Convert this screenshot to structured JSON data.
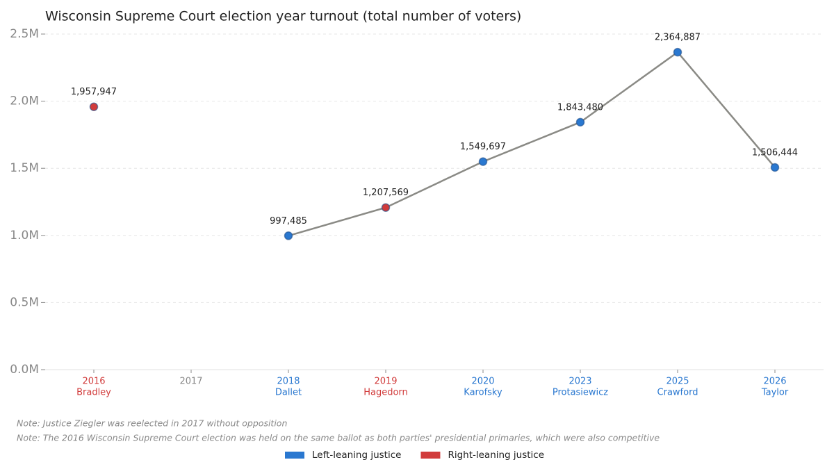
{
  "chart_data": {
    "type": "line",
    "title": "Wisconsin Supreme Court election year turnout (total number of voters)",
    "categories": [
      "2016",
      "2017",
      "2018",
      "2019",
      "2020",
      "2023",
      "2025",
      "2026"
    ],
    "subcategories": [
      "Bradley",
      null,
      "Dallet",
      "Hagedorn",
      "Karofsky",
      "Protasiewicz",
      "Crawford",
      "Taylor"
    ],
    "values": [
      1957947,
      null,
      997485,
      1207569,
      1549697,
      1843480,
      2364887,
      1506444
    ],
    "value_labels": [
      "1,957,947",
      null,
      "997,485",
      "1,207,569",
      "1,549,697",
      "1,843,480",
      "2,364,887",
      "1,506,444"
    ],
    "point_colors": [
      "#d13b3b",
      null,
      "#2a78d0",
      "#d13b3b",
      "#2a78d0",
      "#2a78d0",
      "#2a78d0",
      "#2a78d0"
    ],
    "line_color": "#8a8a85",
    "ylim": [
      0,
      2500000
    ],
    "yticks": [
      {
        "value": 0,
        "label": "0.0M"
      },
      {
        "value": 500000,
        "label": "0.5M"
      },
      {
        "value": 1000000,
        "label": "1.0M"
      },
      {
        "value": 1500000,
        "label": "1.5M"
      },
      {
        "value": 2000000,
        "label": "2.0M"
      },
      {
        "value": 2500000,
        "label": "2.5M"
      }
    ],
    "grid": true,
    "notes": [
      "Note: Justice Ziegler was reelected in 2017 without opposition",
      "Note: The 2016 Wisconsin Supreme Court election was held on the same ballot as both parties' presidential primaries, which were also competitive"
    ],
    "legend": [
      {
        "name": "Left-leaning justice",
        "color": "#2a78d0"
      },
      {
        "name": "Right-leaning justice",
        "color": "#d13b3b"
      }
    ]
  }
}
